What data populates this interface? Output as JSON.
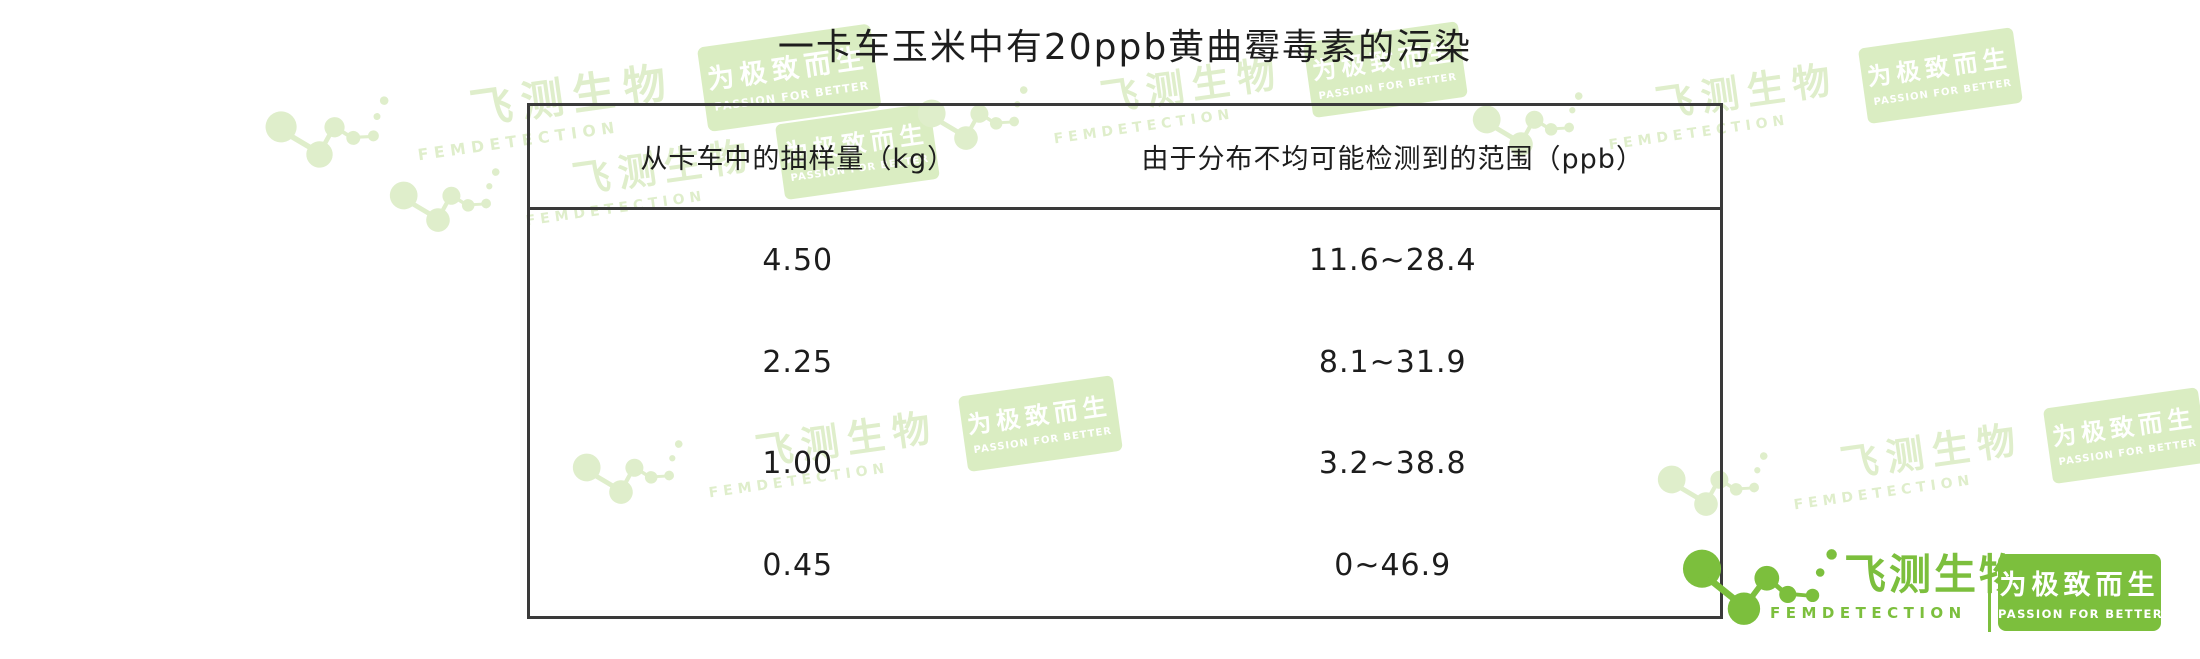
{
  "title": "一卡车玉米中有20ppb黄曲霉毒素的污染",
  "table": {
    "headers": [
      "从卡车中的抽样量（kg）",
      "由于分布不均可能检测到的范围（ppb）"
    ],
    "rows": [
      [
        "4.50",
        "11.6~28.4"
      ],
      [
        "2.25",
        "8.1~31.9"
      ],
      [
        "1.00",
        "3.2~38.8"
      ],
      [
        "0.45",
        "0~46.9"
      ]
    ]
  },
  "chart_data": {
    "type": "table",
    "title": "一卡车玉米中有20ppb黄曲霉毒素的污染",
    "columns": [
      "从卡车中的抽样量（kg）",
      "由于分布不均可能检测到的范围（ppb）"
    ],
    "rows": [
      {
        "sample_kg": "4.50",
        "detected_range_ppb": "11.6~28.4"
      },
      {
        "sample_kg": "2.25",
        "detected_range_ppb": "8.1~31.9"
      },
      {
        "sample_kg": "1.00",
        "detected_range_ppb": "3.2~38.8"
      },
      {
        "sample_kg": "0.45",
        "detected_range_ppb": "0~46.9"
      }
    ]
  },
  "logo": {
    "brand_cn": "飞测生物",
    "brand_en": "FEMDETECTION",
    "slogan_cn": "为极致而生",
    "slogan_en": "PASSION FOR BETTER"
  },
  "watermark": {
    "brand_cn": "飞测生物",
    "brand_en": "FEMDETECTION",
    "slogan_cn": "为极致而生",
    "slogan_en": "PASSION FOR BETTER"
  },
  "colors": {
    "brand_green": "#7cbf3d",
    "watermark_green": "#dfeecb",
    "table_border": "#3a3a3a"
  }
}
